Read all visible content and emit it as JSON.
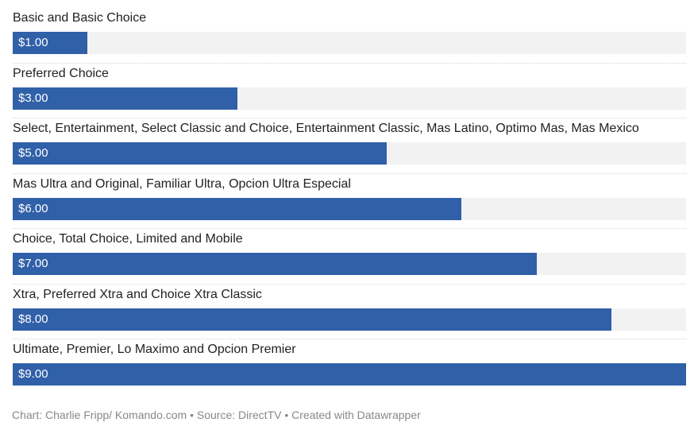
{
  "chart_data": {
    "type": "bar",
    "orientation": "horizontal",
    "categories": [
      "Basic and Basic Choice",
      "Preferred Choice",
      "Select, Entertainment, Select Classic and Choice, Entertainment Classic, Mas Latino, Optimo Mas, Mas Mexico",
      "Mas Ultra and Original, Familiar Ultra, Opcion Ultra Especial",
      "Choice, Total Choice, Limited and Mobile",
      "Xtra, Preferred Xtra and Choice Xtra Classic",
      "Ultimate, Premier, Lo Maximo and Opcion Premier"
    ],
    "values": [
      1,
      3,
      5,
      6,
      7,
      8,
      9
    ],
    "value_labels": [
      "$1.00",
      "$3.00",
      "$5.00",
      "$6.00",
      "$7.00",
      "$8.00",
      "$9.00"
    ],
    "xlim": [
      0,
      9
    ],
    "colors": {
      "bar": "#3060a8",
      "track": "#f2f2f2"
    }
  },
  "footer": "Chart: Charlie Fripp/ Komando.com • Source: DirectTV • Created with Datawrapper"
}
